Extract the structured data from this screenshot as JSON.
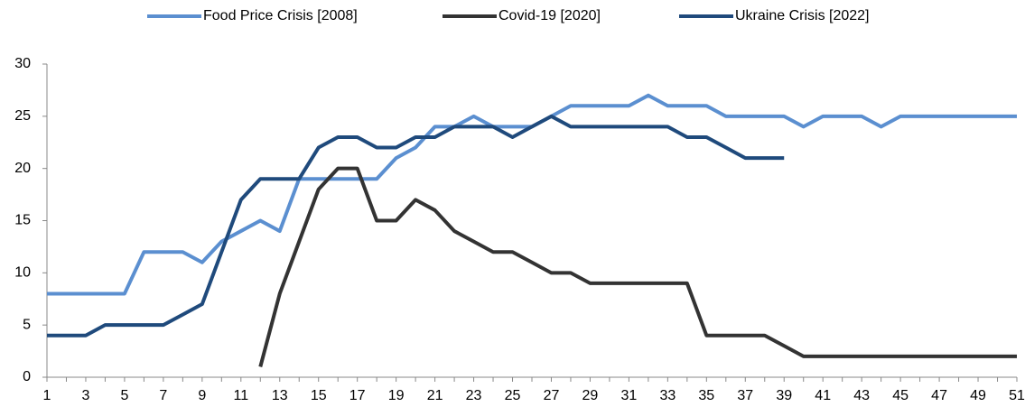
{
  "chart_data": {
    "type": "line",
    "x": [
      1,
      2,
      3,
      4,
      5,
      6,
      7,
      8,
      9,
      10,
      11,
      12,
      13,
      14,
      15,
      16,
      17,
      18,
      19,
      20,
      21,
      22,
      23,
      24,
      25,
      26,
      27,
      28,
      29,
      30,
      31,
      32,
      33,
      34,
      35,
      36,
      37,
      38,
      39,
      40,
      41,
      42,
      43,
      44,
      45,
      46,
      47,
      48,
      49,
      50,
      51
    ],
    "series": [
      {
        "name": "Food Price Crisis [2008]",
        "color": "#5b8fd0",
        "values": [
          8,
          8,
          8,
          8,
          8,
          12,
          12,
          12,
          11,
          13,
          14,
          15,
          14,
          19,
          19,
          19,
          19,
          19,
          21,
          22,
          24,
          24,
          25,
          24,
          24,
          24,
          25,
          26,
          26,
          26,
          26,
          27,
          26,
          26,
          26,
          25,
          25,
          25,
          25,
          24,
          25,
          25,
          25,
          24,
          25,
          25,
          25,
          25,
          25,
          25,
          25
        ]
      },
      {
        "name": "Covid-19 [2020]",
        "color": "#333333",
        "values": [
          null,
          null,
          null,
          null,
          null,
          null,
          null,
          null,
          null,
          null,
          null,
          1,
          8,
          13,
          18,
          20,
          20,
          15,
          15,
          17,
          16,
          14,
          13,
          12,
          12,
          11,
          10,
          10,
          9,
          9,
          9,
          9,
          9,
          9,
          4,
          4,
          4,
          4,
          3,
          2,
          2,
          2,
          2,
          2,
          2,
          2,
          2,
          2,
          2,
          2,
          2
        ]
      },
      {
        "name": "Ukraine Crisis [2022]",
        "color": "#1f4a7c",
        "values": [
          4,
          4,
          4,
          5,
          5,
          5,
          5,
          6,
          7,
          12,
          17,
          19,
          19,
          19,
          22,
          23,
          23,
          22,
          22,
          23,
          23,
          24,
          24,
          24,
          23,
          24,
          25,
          24,
          24,
          24,
          24,
          24,
          24,
          23,
          23,
          22,
          21,
          21,
          21,
          null,
          null,
          null,
          null,
          null,
          null,
          null,
          null,
          null,
          null,
          null,
          null
        ]
      }
    ],
    "xlim": [
      1,
      51
    ],
    "xticks": [
      1,
      3,
      5,
      7,
      9,
      11,
      13,
      15,
      17,
      19,
      21,
      23,
      25,
      27,
      29,
      31,
      33,
      35,
      37,
      39,
      41,
      43,
      45,
      47,
      49,
      51
    ],
    "ylim": [
      0,
      30
    ],
    "yticks": [
      0,
      5,
      10,
      15,
      20,
      25,
      30
    ],
    "legend": "top"
  }
}
